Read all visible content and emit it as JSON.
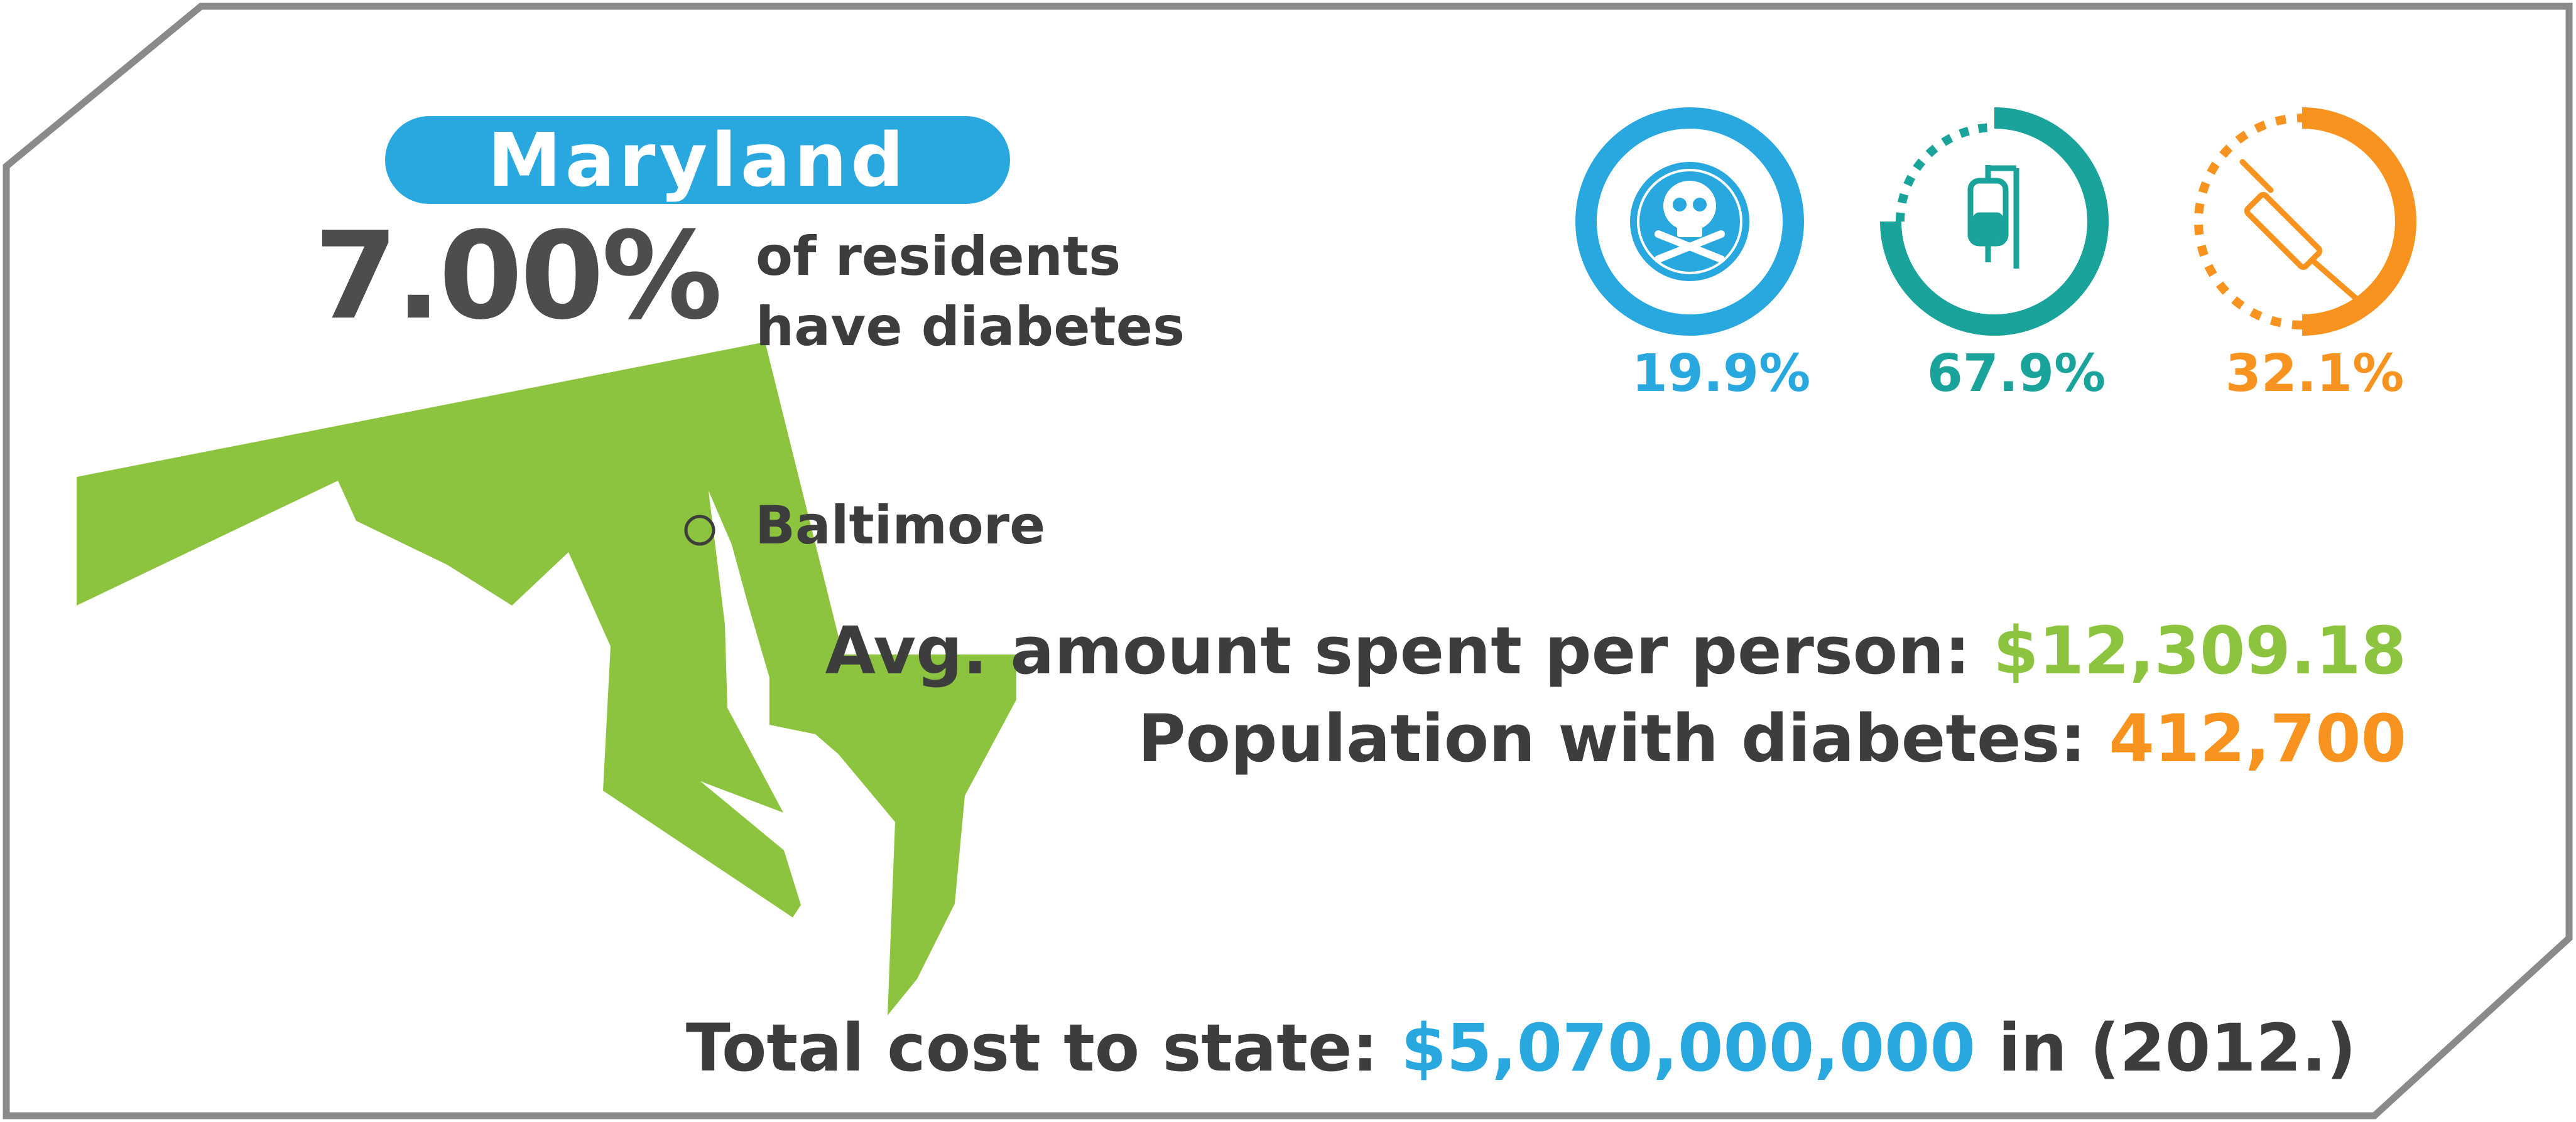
{
  "header": {
    "state_name": "Maryland",
    "diabetes_rate": "7.00%",
    "caption_line1": "of residents",
    "caption_line2": "have diabetes"
  },
  "map": {
    "city_label": "Baltimore",
    "fill_color": "#8cc43f"
  },
  "rings": [
    {
      "icon": "skull-crossbones-icon",
      "value": "19.9%",
      "fraction": 0.199,
      "color": "#29a8e0"
    },
    {
      "icon": "iv-bag-icon",
      "value": "67.9%",
      "fraction": 0.679,
      "color": "#1aa39b"
    },
    {
      "icon": "syringe-icon",
      "value": "32.1%",
      "fraction": 0.321,
      "color": "#f7931e"
    }
  ],
  "stats": {
    "avg_spent_label": "Avg. amount spent per person:",
    "avg_spent_value": "$12,309.18",
    "population_label": "Population with diabetes:",
    "population_value": "412,700",
    "total_cost_label": "Total cost to state:",
    "total_cost_value": "$5,070,000,000",
    "total_cost_suffix": "in (2012.)"
  },
  "colors": {
    "blue": "#29a8e0",
    "teal": "#1aa39b",
    "orange": "#f7931e",
    "green": "#8cc43f",
    "text_dark": "#3d3d3d",
    "frame": "#8a8a8a"
  }
}
